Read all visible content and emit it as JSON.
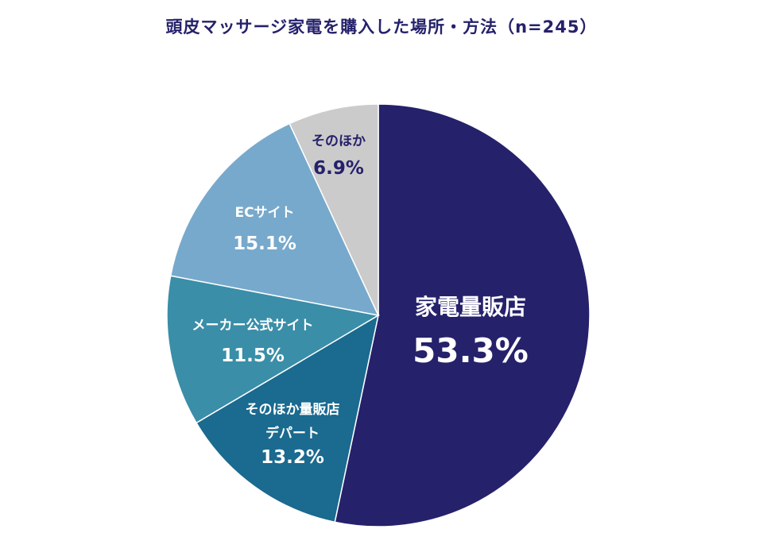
{
  "chart_data": {
    "type": "pie",
    "title": "頭皮マッサージ家電を購入した場所・方法（n=245）",
    "start": "12 o'clock",
    "direction": "clockwise",
    "slices": [
      {
        "lines": [
          "家電量販店"
        ],
        "value_label": "53.3%",
        "value": 53.3,
        "color": "#25216b",
        "text_color": "#ffffff"
      },
      {
        "lines": [
          "そのほか量販店",
          "デパート"
        ],
        "value_label": "13.2%",
        "value": 13.2,
        "color": "#1b6a8f",
        "text_color": "#ffffff"
      },
      {
        "lines": [
          "メーカー公式サイト"
        ],
        "value_label": "11.5%",
        "value": 11.5,
        "color": "#3a8ea8",
        "text_color": "#ffffff"
      },
      {
        "lines": [
          "ECサイト"
        ],
        "value_label": "15.1%",
        "value": 15.1,
        "color": "#77a9cc",
        "text_color": "#ffffff"
      },
      {
        "lines": [
          "そのほか"
        ],
        "value_label": "6.9%",
        "value": 6.9,
        "color": "#cbcbcb",
        "text_color": "#25216b"
      }
    ]
  }
}
